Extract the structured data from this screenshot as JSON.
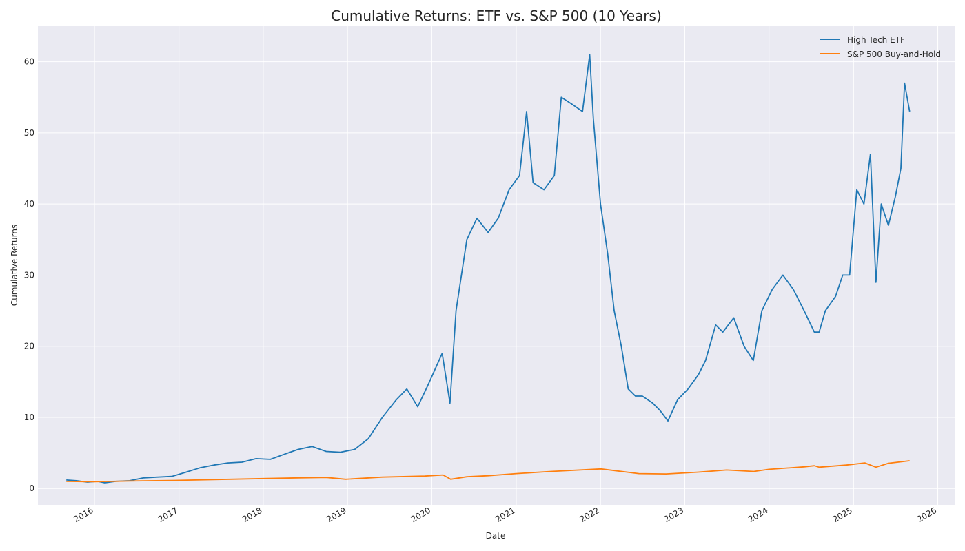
{
  "chart_data": {
    "type": "line",
    "title": "Cumulative Returns: ETF vs. S&P 500 (10 Years)",
    "xlabel": "Date",
    "ylabel": "Cumulative Returns",
    "xlim": [
      "2015-05-01",
      "2026-03-15"
    ],
    "ylim": [
      -2.3,
      65
    ],
    "x_ticks": [
      "2016",
      "2017",
      "2018",
      "2019",
      "2020",
      "2021",
      "2022",
      "2023",
      "2024",
      "2025",
      "2026"
    ],
    "y_ticks": [
      0,
      10,
      20,
      30,
      40,
      50,
      60
    ],
    "grid": true,
    "legend_position": "top-right",
    "colors": {
      "plot_bg": "#eaeaf2",
      "grid": "#ffffff",
      "etf": "#1f77b4",
      "sp500": "#ff7f0e"
    },
    "series": [
      {
        "name": "High Tech ETF",
        "x": [
          "2015-09-01",
          "2015-10-15",
          "2015-12-01",
          "2016-01-15",
          "2016-02-15",
          "2016-04-01",
          "2016-06-01",
          "2016-08-01",
          "2016-10-01",
          "2016-12-01",
          "2017-02-01",
          "2017-04-01",
          "2017-06-01",
          "2017-08-01",
          "2017-10-01",
          "2017-12-01",
          "2018-02-01",
          "2018-04-01",
          "2018-06-01",
          "2018-08-01",
          "2018-10-01",
          "2018-12-01",
          "2019-02-01",
          "2019-04-01",
          "2019-06-01",
          "2019-08-01",
          "2019-09-15",
          "2019-11-01",
          "2019-12-15",
          "2020-02-15",
          "2020-03-20",
          "2020-04-15",
          "2020-06-01",
          "2020-07-15",
          "2020-09-01",
          "2020-10-15",
          "2020-12-01",
          "2021-01-15",
          "2021-02-15",
          "2021-03-15",
          "2021-05-01",
          "2021-06-15",
          "2021-07-15",
          "2021-09-01",
          "2021-10-15",
          "2021-11-15",
          "2021-12-01",
          "2022-01-01",
          "2022-02-01",
          "2022-03-01",
          "2022-04-01",
          "2022-05-01",
          "2022-06-01",
          "2022-07-01",
          "2022-08-15",
          "2022-09-15",
          "2022-10-20",
          "2022-12-01",
          "2023-01-15",
          "2023-03-01",
          "2023-04-01",
          "2023-05-15",
          "2023-06-15",
          "2023-08-01",
          "2023-09-15",
          "2023-10-25",
          "2023-12-01",
          "2024-01-15",
          "2024-03-01",
          "2024-04-15",
          "2024-06-01",
          "2024-07-15",
          "2024-08-05",
          "2024-09-01",
          "2024-10-15",
          "2024-11-15",
          "2024-12-15",
          "2025-01-15",
          "2025-02-15",
          "2025-03-15",
          "2025-04-08",
          "2025-05-01",
          "2025-06-01",
          "2025-07-01",
          "2025-07-25",
          "2025-08-10",
          "2025-09-01"
        ],
        "values": [
          1.2,
          1.1,
          0.9,
          1.0,
          0.8,
          1.0,
          1.1,
          1.5,
          1.6,
          1.7,
          2.3,
          2.9,
          3.3,
          3.6,
          3.7,
          4.2,
          4.1,
          4.8,
          5.5,
          5.9,
          5.2,
          5.1,
          5.5,
          7.0,
          10.0,
          12.5,
          14.0,
          11.5,
          14.5,
          19.0,
          12.0,
          25.0,
          35.0,
          38.0,
          36.0,
          38.0,
          42.0,
          44.0,
          53.0,
          43.0,
          42.0,
          44.0,
          55.0,
          54.0,
          53.0,
          61.0,
          52.0,
          40.0,
          33.0,
          25.0,
          20.0,
          14.0,
          13.0,
          13.0,
          12.0,
          11.0,
          9.5,
          12.5,
          14.0,
          16.0,
          18.0,
          23.0,
          22.0,
          24.0,
          20.0,
          18.0,
          25.0,
          28.0,
          30.0,
          28.0,
          25.0,
          22.0,
          22.0,
          25.0,
          27.0,
          30.0,
          30.0,
          42.0,
          40.0,
          47.0,
          29.0,
          40.0,
          37.0,
          41.0,
          45.0,
          57.0,
          53.0
        ]
      },
      {
        "name": "S&P 500 Buy-and-Hold",
        "x": [
          "2015-09-01",
          "2016-01-01",
          "2016-06-01",
          "2017-01-01",
          "2017-06-01",
          "2018-01-01",
          "2018-06-01",
          "2018-10-01",
          "2018-12-24",
          "2019-06-01",
          "2019-12-01",
          "2020-02-19",
          "2020-03-23",
          "2020-06-01",
          "2020-09-01",
          "2021-01-01",
          "2021-06-01",
          "2022-01-03",
          "2022-06-16",
          "2022-10-12",
          "2023-03-01",
          "2023-07-01",
          "2023-10-27",
          "2024-01-01",
          "2024-06-01",
          "2024-07-15",
          "2024-08-05",
          "2024-12-01",
          "2025-02-19",
          "2025-04-08",
          "2025-06-01",
          "2025-09-01"
        ],
        "values": [
          1.0,
          0.95,
          1.05,
          1.15,
          1.25,
          1.4,
          1.5,
          1.55,
          1.3,
          1.6,
          1.75,
          1.9,
          1.3,
          1.65,
          1.8,
          2.1,
          2.4,
          2.75,
          2.1,
          2.05,
          2.3,
          2.6,
          2.4,
          2.7,
          3.05,
          3.2,
          3.0,
          3.3,
          3.6,
          3.0,
          3.55,
          3.9
        ]
      }
    ]
  }
}
